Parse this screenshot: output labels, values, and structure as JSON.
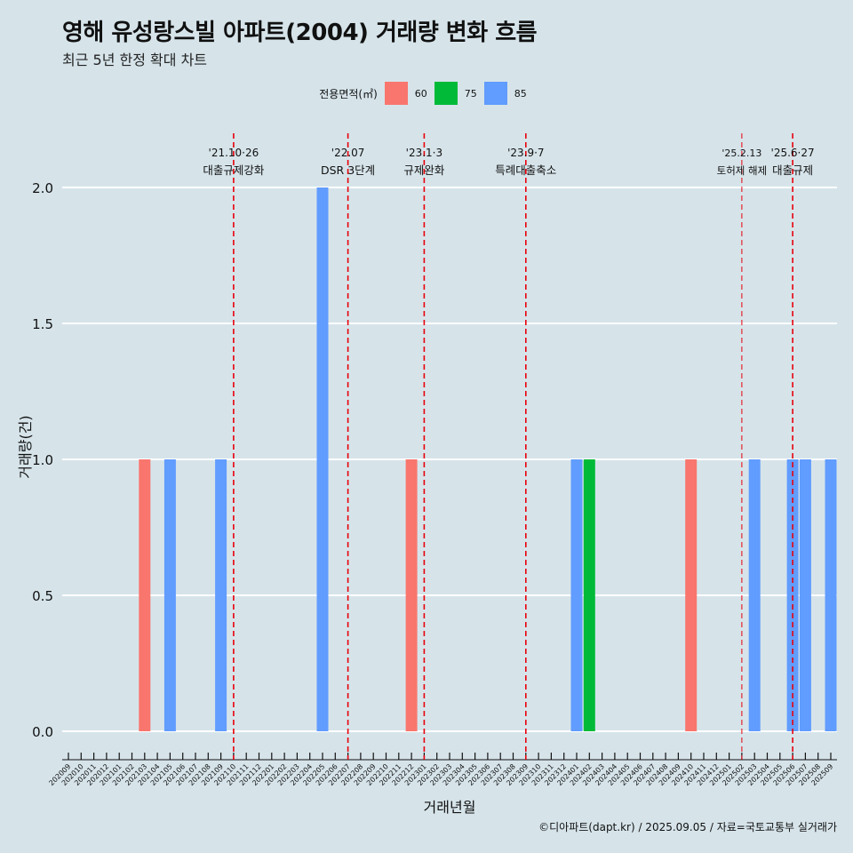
{
  "header": {
    "title": "영해 유성랑스빌 아파트(2004) 거래량 변화 흐름",
    "subtitle": "최근 5년 한정 확대 차트"
  },
  "legend": {
    "title": "전용면적(㎡)",
    "items": [
      {
        "label": "60",
        "color": "#f8766d"
      },
      {
        "label": "75",
        "color": "#00ba38"
      },
      {
        "label": "85",
        "color": "#619cff"
      }
    ]
  },
  "footer": "©디아파트(dapt.kr) / 2025.09.05 / 자료=국토교통부 실거래가",
  "chart_data": {
    "type": "bar",
    "xlabel": "거래년월",
    "ylabel": "거래량(건)",
    "ylim": [
      0,
      2
    ],
    "yticks": [
      "0.0",
      "0.5",
      "1.0",
      "1.5",
      "2.0"
    ],
    "grid": true,
    "legend_position": "top",
    "categories": [
      "202009",
      "202010",
      "202011",
      "202012",
      "202101",
      "202102",
      "202103",
      "202104",
      "202105",
      "202106",
      "202107",
      "202108",
      "202109",
      "202110",
      "202111",
      "202112",
      "202201",
      "202202",
      "202203",
      "202204",
      "202205",
      "202206",
      "202207",
      "202208",
      "202209",
      "202210",
      "202211",
      "202212",
      "202301",
      "202302",
      "202303",
      "202304",
      "202305",
      "202306",
      "202307",
      "202308",
      "202309",
      "202310",
      "202311",
      "202312",
      "202401",
      "202402",
      "202403",
      "202404",
      "202405",
      "202406",
      "202407",
      "202408",
      "202409",
      "202410",
      "202411",
      "202412",
      "202501",
      "202502",
      "202503",
      "202504",
      "202505",
      "202506",
      "202507",
      "202508",
      "202509"
    ],
    "bars": [
      {
        "month": "202103",
        "area": "60",
        "value": 1
      },
      {
        "month": "202105",
        "area": "85",
        "value": 1
      },
      {
        "month": "202109",
        "area": "85",
        "value": 1
      },
      {
        "month": "202205",
        "area": "85",
        "value": 2
      },
      {
        "month": "202212",
        "area": "60",
        "value": 1
      },
      {
        "month": "202401",
        "area": "85",
        "value": 1
      },
      {
        "month": "202402",
        "area": "75",
        "value": 1
      },
      {
        "month": "202410",
        "area": "60",
        "value": 1
      },
      {
        "month": "202503",
        "area": "85",
        "value": 1
      },
      {
        "month": "202506",
        "area": "85",
        "value": 1
      },
      {
        "month": "202507",
        "area": "85",
        "value": 1
      },
      {
        "month": "202509",
        "area": "85",
        "value": 1
      }
    ],
    "annotations": [
      {
        "month": "202110",
        "date": "'21.10·26",
        "label": "대출규제강화"
      },
      {
        "month": "202207",
        "date": "'22.07",
        "label": "DSR 3단계"
      },
      {
        "month": "202301",
        "date": "'23.1·3",
        "label": "규제완화"
      },
      {
        "month": "202309",
        "date": "'23.9·7",
        "label": "특례대출축소"
      },
      {
        "month": "202502",
        "date": "'25.2.13",
        "label": "토허제 해제"
      },
      {
        "month": "202506",
        "date": "'25.6·27",
        "label": "대출규제"
      }
    ]
  }
}
